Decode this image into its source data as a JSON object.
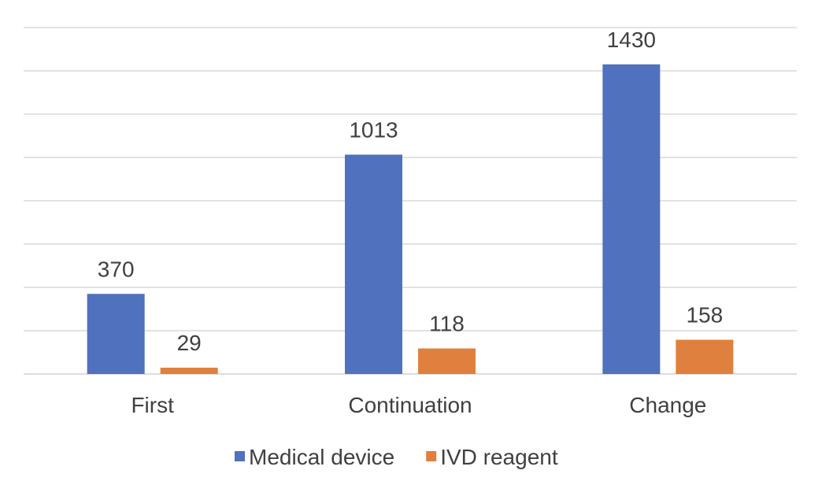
{
  "chart_data": {
    "type": "bar",
    "title": "",
    "xlabel": "",
    "ylabel": "",
    "categories": [
      "First",
      "Continuation",
      "Change"
    ],
    "series": [
      {
        "name": "Medical device",
        "values": [
          370,
          1013,
          1430
        ],
        "color": "#4F71BE"
      },
      {
        "name": "IVD reagent",
        "values": [
          29,
          118,
          158
        ],
        "color": "#E0803E"
      }
    ],
    "ylim": [
      0,
      1600
    ],
    "grid": true,
    "y_axis_labels_shown": false,
    "data_labels": true,
    "legend_position": "bottom"
  }
}
